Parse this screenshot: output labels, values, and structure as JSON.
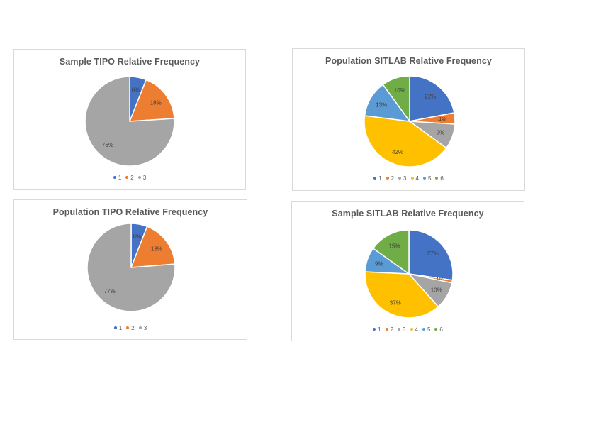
{
  "chart_data": [
    {
      "type": "pie",
      "title": "Sample TIPO Relative Frequency",
      "categories": [
        "1",
        "2",
        "3"
      ],
      "values": [
        6,
        18,
        76
      ],
      "labels": [
        "6%",
        "18%",
        "76%"
      ],
      "colors": [
        "#4472c4",
        "#ed7d31",
        "#a5a5a5"
      ],
      "legend": "bottom"
    },
    {
      "type": "pie",
      "title": "Population SITLAB Relative Frequency",
      "categories": [
        "1",
        "2",
        "3",
        "4",
        "5",
        "6"
      ],
      "values": [
        22,
        4,
        9,
        42,
        13,
        10
      ],
      "labels": [
        "22%",
        "4%",
        "9%",
        "42%",
        "13%",
        "10%"
      ],
      "colors": [
        "#4472c4",
        "#ed7d31",
        "#a5a5a5",
        "#ffc000",
        "#5b9bd5",
        "#70ad47"
      ],
      "legend": "bottom"
    },
    {
      "type": "pie",
      "title": "Population  TIPO Relative Frequency",
      "categories": [
        "1",
        "2",
        "3"
      ],
      "values": [
        6,
        18,
        77
      ],
      "labels": [
        "6%",
        "18%",
        "77%"
      ],
      "colors": [
        "#4472c4",
        "#ed7d31",
        "#a5a5a5"
      ],
      "legend": "bottom"
    },
    {
      "type": "pie",
      "title": "Sample SITLAB Relative Frequency",
      "categories": [
        "1",
        "2",
        "3",
        "4",
        "5",
        "6"
      ],
      "values": [
        27,
        1,
        10,
        37,
        9,
        15
      ],
      "labels": [
        "27%",
        "1%",
        "10%",
        "37%",
        "9%",
        "15%"
      ],
      "colors": [
        "#4472c4",
        "#ed7d31",
        "#a5a5a5",
        "#ffc000",
        "#5b9bd5",
        "#70ad47"
      ],
      "legend": "bottom"
    }
  ]
}
